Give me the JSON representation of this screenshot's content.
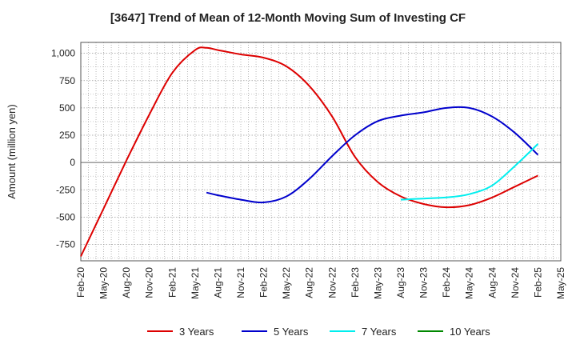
{
  "chart_data": {
    "type": "line",
    "title": "[3647]  Trend of Mean of 12-Month Moving Sum of Investing CF",
    "ylabel": "Amount (million yen)",
    "xlabel": "",
    "ylim": [
      -900,
      1100
    ],
    "yticks": [
      1000,
      750,
      500,
      250,
      0,
      -250,
      -500,
      -750
    ],
    "ytick_labels": [
      "1,000",
      "750",
      "500",
      "250",
      "0",
      "-250",
      "-500",
      "-750"
    ],
    "x_tick_labels": [
      "Feb-20",
      "May-20",
      "Aug-20",
      "Nov-20",
      "Feb-21",
      "May-21",
      "Aug-21",
      "Nov-21",
      "Feb-22",
      "May-22",
      "Aug-22",
      "Nov-22",
      "Feb-23",
      "May-23",
      "Aug-23",
      "Nov-23",
      "Feb-24",
      "May-24",
      "Aug-24",
      "Nov-24",
      "Feb-25",
      "May-25"
    ],
    "grid": true,
    "legend_position": "bottom",
    "series": [
      {
        "name": "3 Years",
        "color": "#dd0000",
        "x_index": [
          0,
          1,
          2,
          3,
          4,
          5,
          5.5,
          6,
          7,
          8,
          9,
          10,
          11,
          12,
          13,
          14,
          15,
          16,
          17,
          18,
          19,
          20
        ],
        "values": [
          -860,
          -420,
          20,
          440,
          820,
          1030,
          1050,
          1030,
          990,
          960,
          880,
          700,
          420,
          50,
          -180,
          -310,
          -380,
          -410,
          -390,
          -320,
          -220,
          -120
        ]
      },
      {
        "name": "5 Years",
        "color": "#0000cc",
        "x_index": [
          5.5,
          6,
          7,
          8,
          9,
          10,
          11,
          12,
          13,
          14,
          15,
          16,
          17,
          18,
          19,
          20
        ],
        "values": [
          -275,
          -300,
          -340,
          -365,
          -310,
          -150,
          60,
          250,
          380,
          430,
          460,
          500,
          500,
          420,
          270,
          70
        ]
      },
      {
        "name": "7 Years",
        "color": "#00eeee",
        "x_index": [
          14,
          15,
          16,
          17,
          18,
          19,
          20
        ],
        "values": [
          -340,
          -330,
          -320,
          -290,
          -210,
          -30,
          170
        ]
      },
      {
        "name": "10 Years",
        "color": "#008800",
        "x_index": [],
        "values": []
      }
    ]
  }
}
